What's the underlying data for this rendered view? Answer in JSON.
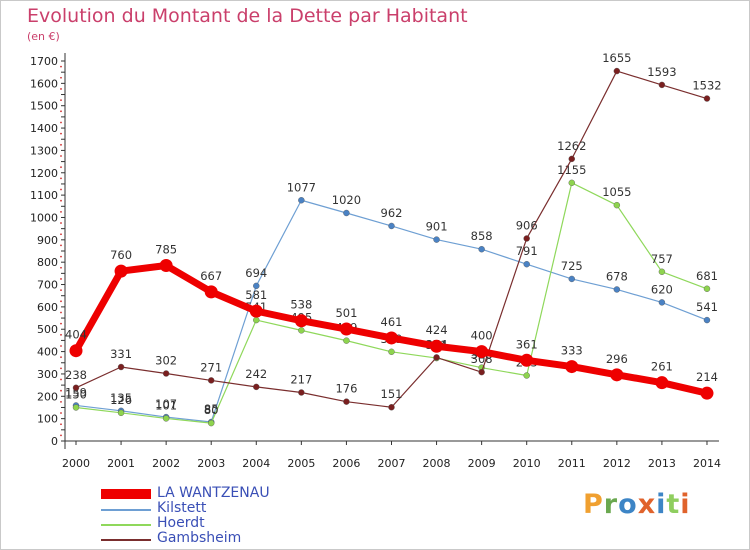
{
  "header": {
    "title": "Evolution du Montant de la Dette par Habitant",
    "unit": "(en €)"
  },
  "brand": {
    "text": "Proxiti",
    "letters": [
      "P",
      "r",
      "o",
      "x",
      "i",
      "t",
      "i"
    ],
    "colors": [
      "#f0a030",
      "#6aa84f",
      "#3d85c6",
      "#e0632c",
      "#3d85c6",
      "#8fce5f",
      "#e0632c"
    ]
  },
  "chart_data": {
    "type": "line",
    "categories": [
      "2000",
      "2001",
      "2002",
      "2003",
      "2004",
      "2005",
      "2006",
      "2007",
      "2008",
      "2009",
      "2010",
      "2011",
      "2012",
      "2013",
      "2014"
    ],
    "ylim": [
      0,
      1700
    ],
    "yticks": [
      0,
      100,
      200,
      300,
      400,
      500,
      600,
      700,
      800,
      900,
      1000,
      1100,
      1200,
      1300,
      1400,
      1500,
      1600,
      1700
    ],
    "grid": false,
    "legend_position": "bottom-left",
    "series": [
      {
        "name": "LA WANTZENAU",
        "color": "#ee0000",
        "marker": "#ee0000",
        "values": [
          404,
          760,
          785,
          667,
          581,
          538,
          501,
          461,
          424,
          400,
          361,
          333,
          296,
          261,
          214
        ],
        "labels": [
          "404",
          "760",
          "785",
          "667",
          "581",
          "538",
          "501",
          "461",
          "424",
          "400",
          "361",
          "333",
          "296",
          "261",
          "214"
        ]
      },
      {
        "name": "Kilstett",
        "color": "#6e9fd3",
        "marker": "#4a82c4",
        "values": [
          159,
          135,
          107,
          85,
          694,
          1077,
          1020,
          962,
          901,
          858,
          791,
          725,
          678,
          620,
          541
        ],
        "labels": [
          "159",
          "135",
          "107",
          "85",
          "694",
          "1077",
          "1020",
          "962",
          "901",
          "858",
          "791",
          "725",
          "678",
          "620",
          "541"
        ]
      },
      {
        "name": "Hoerdt",
        "color": "#8fd85b",
        "marker": "#8ed44e",
        "values": [
          150,
          126,
          101,
          80,
          541,
          495,
          449,
          399,
          371,
          328,
          293,
          1155,
          1055,
          757,
          681
        ],
        "labels": [
          "150",
          "126",
          "101",
          "80",
          "541",
          "495",
          "449",
          "399",
          "371",
          "328",
          "293",
          "1155",
          "1055",
          "757",
          "681"
        ]
      },
      {
        "name": "Gambsheim",
        "color": "#7a2e2e",
        "marker": "#7a1f1f",
        "values": [
          238,
          331,
          302,
          271,
          242,
          217,
          176,
          151,
          374,
          308,
          906,
          1262,
          1655,
          1593,
          1532
        ],
        "labels": [
          "238",
          "331",
          "302",
          "271",
          "242",
          "217",
          "176",
          "151",
          "374",
          "308",
          "906",
          "1262",
          "1655",
          "1593",
          "1532"
        ]
      }
    ]
  }
}
